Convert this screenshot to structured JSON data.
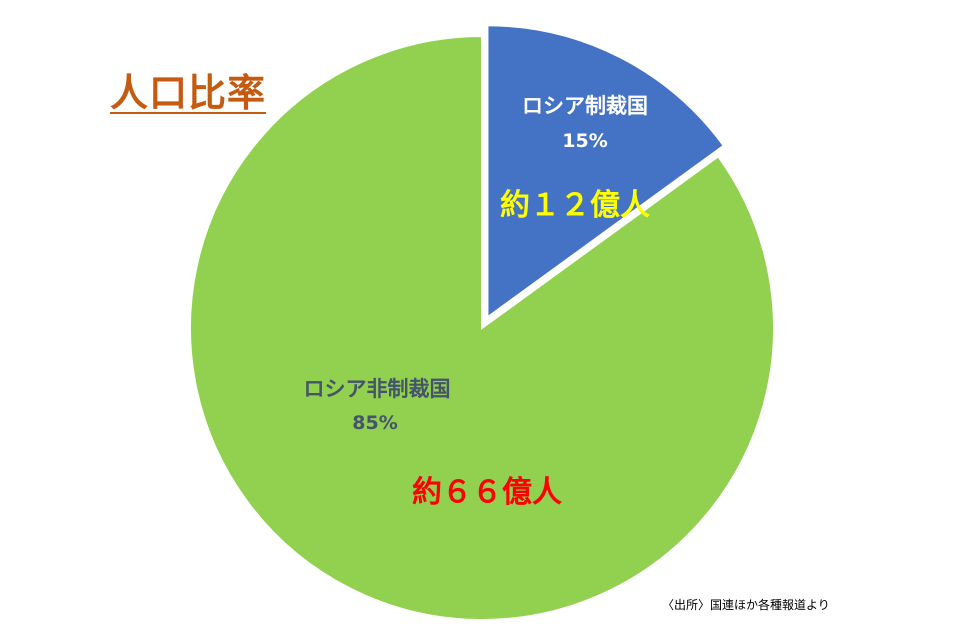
{
  "title": "人口比率",
  "source_note": "〈出所〉国連ほか各種報道より",
  "colors": {
    "title": "#c55a11",
    "slice_sanctioning": "#4472c4",
    "slice_non_sanctioning": "#92d050",
    "label_on_blue": "#ffffff",
    "population_on_blue": "#ffff00",
    "label_on_green": "#44546a",
    "population_on_green": "#ff0000"
  },
  "annotations": {
    "sanctioning_population": "約１２億人",
    "non_sanctioning_population": "約６６億人"
  },
  "chart_data": {
    "type": "pie",
    "title": "人口比率",
    "slices": [
      {
        "label": "ロシア制裁国",
        "value": 15,
        "value_label": "15%",
        "exploded": true
      },
      {
        "label": "ロシア非制裁国",
        "value": 85,
        "value_label": "85%",
        "exploded": false
      }
    ],
    "legend": "none"
  }
}
